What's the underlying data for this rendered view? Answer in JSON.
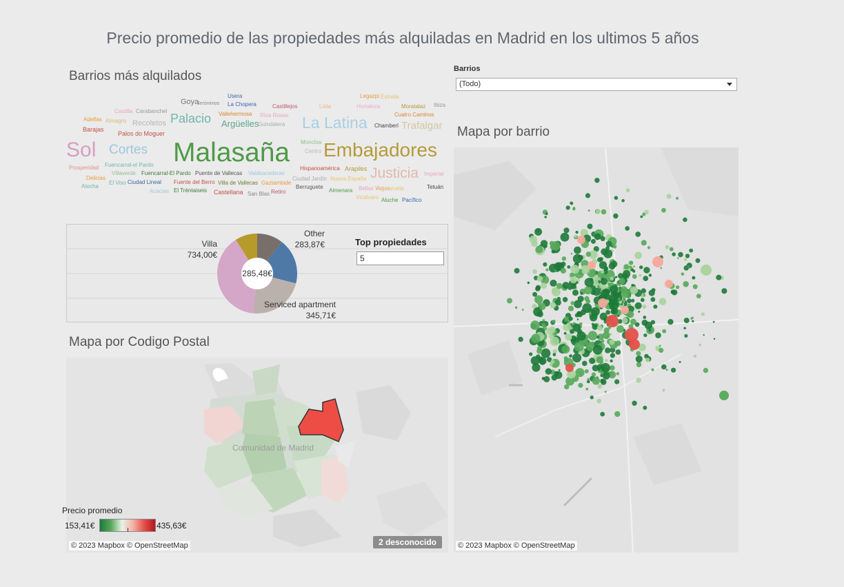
{
  "dashboard_title": "Precio promedio de las propiedades  más alquiladas en Madrid en los ultimos 5 años",
  "wordcloud": {
    "title": "Barrios más alquilados",
    "words": [
      {
        "text": "Malasaña",
        "color": "#4f9a48"
      },
      {
        "text": "Embajadores",
        "color": "#b59a3a"
      },
      {
        "text": "Sol",
        "color": "#d69fc0"
      },
      {
        "text": "Cortes",
        "color": "#9ec6de"
      },
      {
        "text": "La Latina",
        "color": "#a7cfe3"
      },
      {
        "text": "Justicia",
        "color": "#e3b8ad"
      },
      {
        "text": "Palacio",
        "color": "#6fb6ad"
      },
      {
        "text": "Trafalgar",
        "color": "#d3c6a3"
      },
      {
        "text": "Argüelles",
        "color": "#5fa48a"
      },
      {
        "text": "Recoletos",
        "color": "#b7b7b7"
      },
      {
        "text": "Goya",
        "color": "#777777"
      },
      {
        "text": "Jerónimos",
        "color": "#888888"
      },
      {
        "text": "Usera",
        "color": "#3a66a8"
      },
      {
        "text": "La Chopera",
        "color": "#3a66a8"
      },
      {
        "text": "Castillejos",
        "color": "#b85a6a"
      },
      {
        "text": "Lista",
        "color": "#f2b183"
      },
      {
        "text": "Hortaleza",
        "color": "#eeaacc"
      },
      {
        "text": "Legazpi",
        "color": "#e59c3b"
      },
      {
        "text": "Estrella",
        "color": "#e7c56a"
      },
      {
        "text": "Moratalaz",
        "color": "#b59a3a"
      },
      {
        "text": "Ibiza",
        "color": "#999999"
      },
      {
        "text": "Cuatro Caminos",
        "color": "#d9862f"
      },
      {
        "text": "Chamberí",
        "color": "#444444"
      },
      {
        "text": "Castilla",
        "color": "#e8a5c0"
      },
      {
        "text": "Carabanchel",
        "color": "#999999"
      },
      {
        "text": "Vallehermosa",
        "color": "#d9862f"
      },
      {
        "text": "Ríos Rosas",
        "color": "#e8a5c0"
      },
      {
        "text": "Guindalera",
        "color": "#aaaaaa"
      },
      {
        "text": "Adelfas",
        "color": "#e59c3b"
      },
      {
        "text": "Almagro",
        "color": "#d9b97a"
      },
      {
        "text": "Barajas",
        "color": "#c1504a"
      },
      {
        "text": "Palos do Moguer",
        "color": "#c1504a"
      },
      {
        "text": "Moncloa",
        "color": "#8fc08f"
      },
      {
        "text": "Centro",
        "color": "#b7b7b7"
      },
      {
        "text": "Prosperidad",
        "color": "#e88c8c"
      },
      {
        "text": "Fuencarral-el Pardo",
        "color": "#6fb6ad"
      },
      {
        "text": "Villaverde",
        "color": "#8fc08f"
      },
      {
        "text": "Fuencarral-El Pardo",
        "color": "#3d7a3d"
      },
      {
        "text": "Puente de Vallecas",
        "color": "#555555"
      },
      {
        "text": "Valdeacederas",
        "color": "#9ec6de"
      },
      {
        "text": "Hispanoamérica",
        "color": "#c1504a"
      },
      {
        "text": "Arapiles",
        "color": "#b59a3a"
      },
      {
        "text": "Imperial",
        "color": "#e8a5c0"
      },
      {
        "text": "Delicias",
        "color": "#e59c3b"
      },
      {
        "text": "El Viso",
        "color": "#6fb6ad"
      },
      {
        "text": "Ciudad Lineal",
        "color": "#3a66a8"
      },
      {
        "text": "Fuente del Berro",
        "color": "#c1504a"
      },
      {
        "text": "Villa de Vallecas",
        "color": "#6a7d2f"
      },
      {
        "text": "Gaztambide",
        "color": "#e59c3b"
      },
      {
        "text": "Ciudad Jardín",
        "color": "#aaaaaa"
      },
      {
        "text": "Nueva España",
        "color": "#e7c56a"
      },
      {
        "text": "Tetuán",
        "color": "#444444"
      },
      {
        "text": "Atocha",
        "color": "#6fb6ad"
      },
      {
        "text": "Acacias",
        "color": "#9ec6de"
      },
      {
        "text": "El Trèntaiseis",
        "color": "#3d7a3d"
      },
      {
        "text": "Castellana",
        "color": "#c1504a"
      },
      {
        "text": "San Blas",
        "color": "#888888"
      },
      {
        "text": "Retiro",
        "color": "#b85a6a"
      },
      {
        "text": "Berruguete",
        "color": "#555555"
      },
      {
        "text": "Almenara",
        "color": "#4f9a48"
      },
      {
        "text": "Bellas Vistas",
        "color": "#e8a5c0"
      },
      {
        "text": "Arganzuela",
        "color": "#e7c56a"
      },
      {
        "text": "Vicálvaro",
        "color": "#e7c56a"
      },
      {
        "text": "Aluche",
        "color": "#4f9a48"
      },
      {
        "text": "Pacífico",
        "color": "#3a66a8"
      }
    ]
  },
  "pie": {
    "center_value": "285,48€",
    "top_label": "Top  propiedades",
    "top_value": "5",
    "slices": [
      {
        "label": "Other",
        "value": "283,87€",
        "color": "#786e6a",
        "share": 0.105
      },
      {
        "label": "",
        "value": "",
        "color": "#4e79a7",
        "share": 0.185
      },
      {
        "label": "Serviced apartment",
        "value": "345,71€",
        "color": "#bab0ac",
        "share": 0.225
      },
      {
        "label": "Villa",
        "value": "734,00€",
        "color": "#d4a6c8",
        "share": 0.395
      },
      {
        "label": "",
        "value": "",
        "color": "#b69a2a",
        "share": 0.09
      }
    ]
  },
  "map_postal": {
    "title": "Mapa por Codigo Postal",
    "region_label": "Comunidad de Madrid",
    "credit": "© 2023 Mapbox © OpenStreetMap",
    "unknown_badge": "2 desconocido",
    "legend": {
      "title": "Precio promedio",
      "min": "153,41€",
      "max": "435,63€"
    }
  },
  "filter": {
    "label": "Barrios",
    "value": "(Todo)"
  },
  "map_barrio": {
    "title": "Mapa por barrio",
    "credit": "© 2023 Mapbox © OpenStreetMap"
  },
  "colors": {
    "dark_green": "#1e7a3a",
    "mid_green": "#57a85b",
    "light_green": "#a8d39c",
    "salmon": "#f4a89a",
    "red": "#e5504a"
  }
}
